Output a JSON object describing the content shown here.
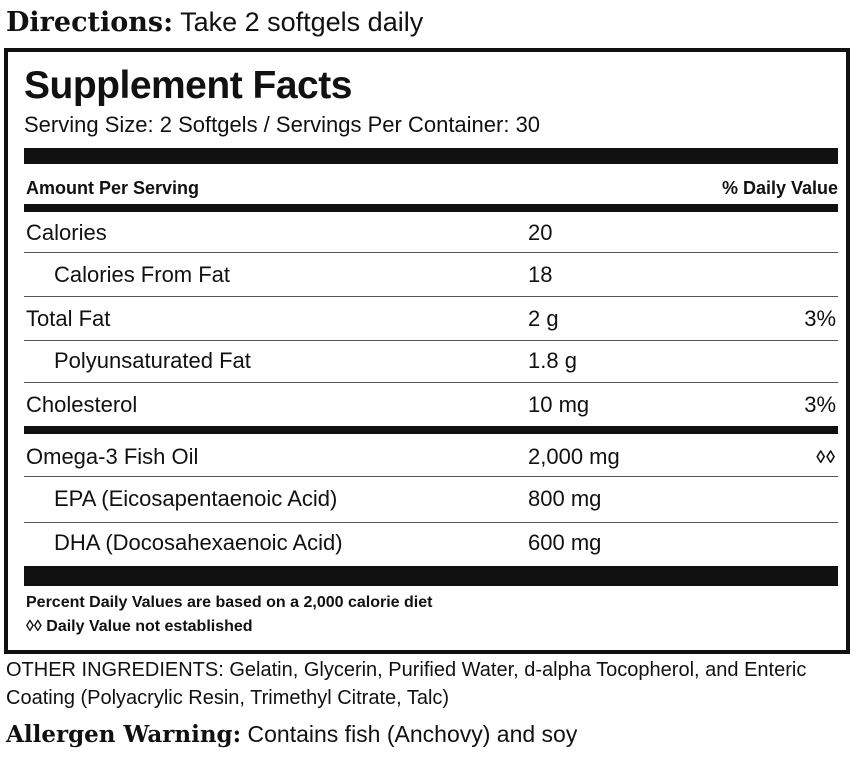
{
  "directions": {
    "label": "Directions:",
    "text": "Take 2 softgels daily"
  },
  "facts": {
    "title": "Supplement Facts",
    "serving": "Serving Size: 2 Softgels / Servings Per Container: 30",
    "amount_header": "Amount Per Serving",
    "dv_header": "% Daily Value",
    "rows": [
      {
        "name": "Calories",
        "amount": "20",
        "dv": ""
      },
      {
        "name": "Calories From Fat",
        "amount": "18",
        "dv": ""
      },
      {
        "name": "Total Fat",
        "amount": "2 g",
        "dv": "3%"
      },
      {
        "name": "Polyunsaturated Fat",
        "amount": "1.8 g",
        "dv": ""
      },
      {
        "name": "Cholesterol",
        "amount": "10 mg",
        "dv": "3%"
      },
      {
        "name": "Omega-3 Fish Oil",
        "amount": "2,000 mg",
        "dv": "◊◊"
      },
      {
        "name": "EPA (Eicosapentaenoic Acid)",
        "amount": "800 mg",
        "dv": ""
      },
      {
        "name": "DHA (Docosahexaenoic Acid)",
        "amount": "600 mg",
        "dv": ""
      }
    ],
    "footnotes": [
      "Percent Daily Values are based on a 2,000 calorie diet",
      "◊◊ Daily Value not established"
    ]
  },
  "other_ingredients": "OTHER INGREDIENTS: Gelatin, Glycerin, Purified Water, d-alpha Tocopherol, and Enteric Coating (Polyacrylic Resin, Trimethyl Citrate, Talc)",
  "allergen": {
    "label": "Allergen Warning:",
    "text": "Contains fish (Anchovy) and soy"
  },
  "colors": {
    "ink": "#111111",
    "background": "#ffffff"
  }
}
